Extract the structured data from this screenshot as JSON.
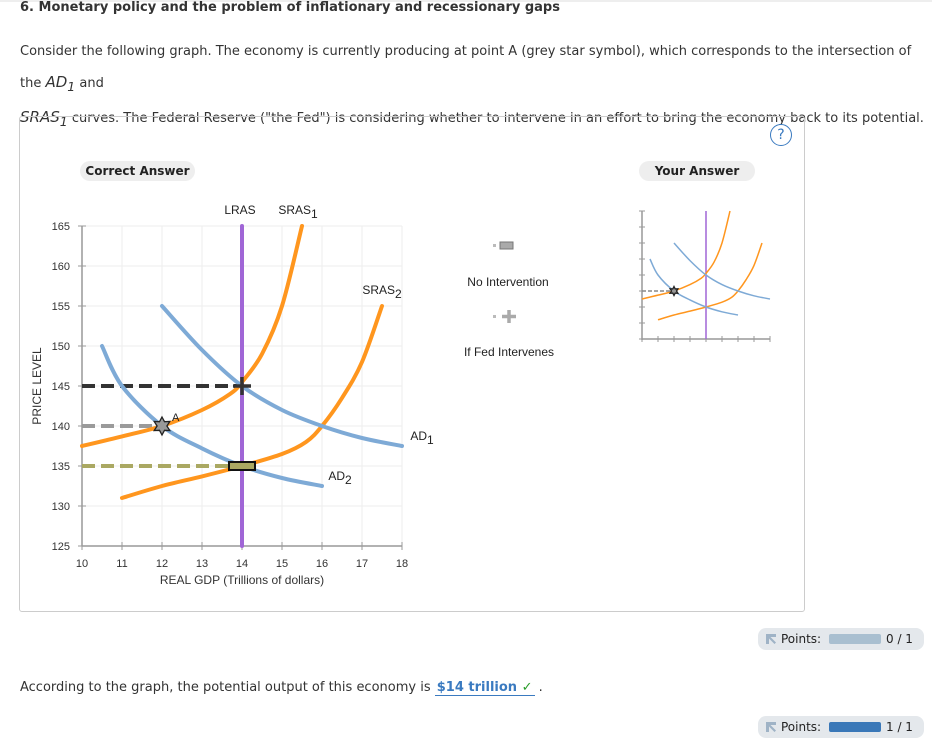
{
  "title": "6. Monetary policy and the problem of inflationary and recessionary gaps",
  "intro": {
    "p1": "Consider the following graph. The economy is currently producing at point A (grey star symbol), which corresponds to the intersection of the ",
    "ad1": "AD",
    "ad1sub": "1",
    "p2": " and ",
    "sras1": "SRAS",
    "sras1sub": "1",
    "p3": " curves. The Federal Reserve (\"the Fed\") is considering whether to intervene in an effort to bring the economy back to its potential."
  },
  "panel": {
    "correct_label": "Correct Answer",
    "your_label": "Your Answer",
    "help": "?"
  },
  "legend": [
    {
      "label": "No Intervention",
      "symbol": "olive-rectangle"
    },
    {
      "label": "If Fed Intervenes",
      "symbol": "black-cross"
    }
  ],
  "chart_data": {
    "type": "line",
    "xlabel": "REAL GDP (Trillions of dollars)",
    "ylabel": "PRICE LEVEL",
    "xlim": [
      10,
      18
    ],
    "ylim": [
      125,
      165
    ],
    "xticks": [
      10,
      11,
      12,
      13,
      14,
      15,
      16,
      17,
      18
    ],
    "yticks": [
      125,
      130,
      135,
      140,
      145,
      150,
      155,
      160,
      165
    ],
    "grid": true,
    "series": [
      {
        "name": "LRAS",
        "name_sub": "",
        "color": "#a066d6",
        "points": [
          [
            14,
            125
          ],
          [
            14,
            165
          ]
        ]
      },
      {
        "name": "SRAS",
        "name_sub": "1",
        "color": "#ff961e",
        "points": [
          [
            10,
            137.5
          ],
          [
            11,
            138.7
          ],
          [
            12,
            140
          ],
          [
            13,
            142
          ],
          [
            13.7,
            144
          ],
          [
            14,
            145.5
          ],
          [
            14.5,
            149
          ],
          [
            15,
            155
          ],
          [
            15.5,
            165
          ]
        ]
      },
      {
        "name": "SRAS",
        "name_sub": "2",
        "color": "#ff961e",
        "points": [
          [
            11,
            131
          ],
          [
            12,
            132.5
          ],
          [
            13,
            133.7
          ],
          [
            14,
            135
          ],
          [
            15,
            136.5
          ],
          [
            15.6,
            138
          ],
          [
            16,
            140
          ],
          [
            16.5,
            143.5
          ],
          [
            17,
            148
          ],
          [
            17.5,
            155
          ]
        ]
      },
      {
        "name": "AD",
        "name_sub": "1",
        "color": "#7eaad6",
        "points": [
          [
            10.5,
            150
          ],
          [
            11,
            145
          ],
          [
            12,
            140
          ],
          [
            13,
            137.2
          ],
          [
            14,
            135
          ],
          [
            15,
            133.5
          ],
          [
            16,
            132.5
          ]
        ]
      },
      {
        "name": "AD",
        "name_sub": "2",
        "color": "#7eaad6",
        "points": [
          [
            12,
            155
          ],
          [
            13,
            149.5
          ],
          [
            14,
            145
          ],
          [
            15,
            142
          ],
          [
            16,
            140
          ],
          [
            17,
            138.5
          ],
          [
            18,
            137.5
          ]
        ]
      }
    ],
    "points": [
      {
        "label": "A",
        "x": 12,
        "y": 140,
        "symbol": "grey-star",
        "dash_color": "#9a9a9a"
      },
      {
        "label": "",
        "x": 14,
        "y": 145,
        "symbol": "black-cross",
        "dash_color": "#333333"
      },
      {
        "label": "",
        "x": 14,
        "y": 135,
        "symbol": "olive-rectangle",
        "dash_color": "#aaa862"
      }
    ],
    "your_answer_points": [
      {
        "x": 12,
        "y": 140,
        "symbol": "grey-star"
      }
    ]
  },
  "points_top": {
    "label": "Points:",
    "value": "0 / 1",
    "fraction": 0,
    "bar_color": "#a9bfd0"
  },
  "question": {
    "text": "According to the graph, the potential output of this economy is ",
    "answer": "$14 trillion",
    "check": "✓",
    "end": " ."
  },
  "points_bottom": {
    "label": "Points:",
    "value": "1 / 1",
    "fraction": 1,
    "bar_color": "#3a78b8"
  }
}
